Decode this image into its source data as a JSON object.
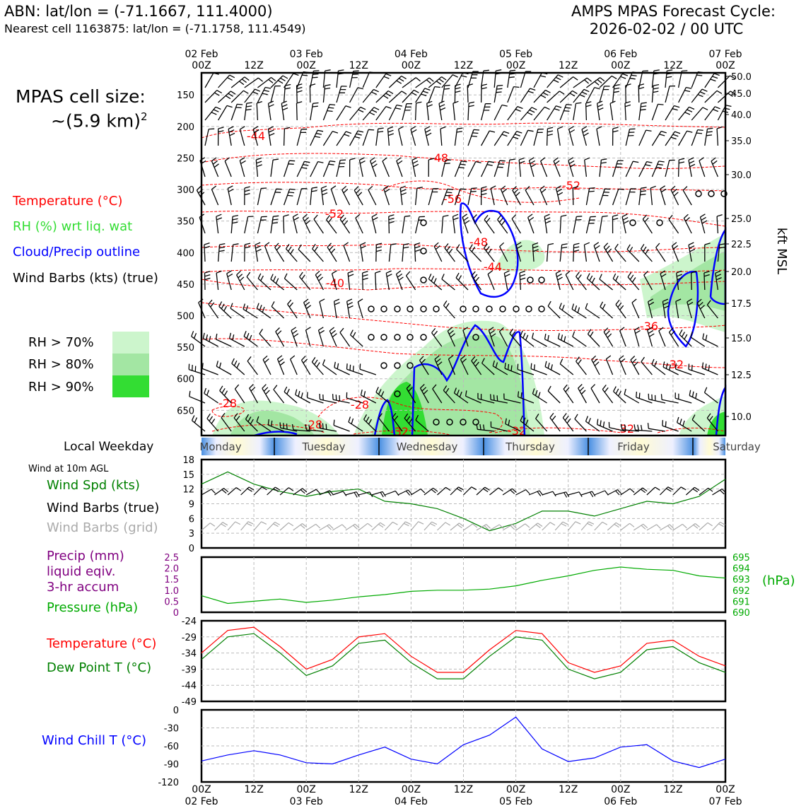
{
  "header": {
    "station": "ABN: lat/lon = (-71.1667, 111.4000)",
    "nearest": "Nearest cell 1163875: lat/lon = (-71.1758, 111.4549)",
    "cycle_title": "AMPS MPAS Forecast Cycle:",
    "cycle_time": "2026-02-02 / 00 UTC"
  },
  "left_panel": {
    "cell_size_line1": "MPAS cell size:",
    "cell_size_line2": "~(5.9 km)",
    "cell_size_sup": "2",
    "legend_temp": "Temperature (°C)",
    "legend_rh": "RH (%) wrt liq. wat",
    "legend_cloud": "Cloud/Precip outline",
    "legend_wind": "Wind Barbs (kts) (true)",
    "rh_levels": [
      {
        "label": "RH > 70%",
        "color": "#ccf5cc"
      },
      {
        "label": "RH > 80%",
        "color": "#a3e6a3"
      },
      {
        "label": "RH > 90%",
        "color": "#33dd33"
      }
    ],
    "local_weekday": "Local Weekday",
    "wind_10m": "Wind at 10m AGL",
    "wind_spd": "Wind Spd (kts)",
    "wind_barbs_true": "Wind Barbs (true)",
    "wind_barbs_grid": "Wind Barbs (grid)",
    "precip_line1": "Precip (mm)",
    "precip_line2": "liquid eqiv.",
    "precip_line3": "3-hr accum",
    "pressure_label": "Pressure (hPa)",
    "temp_label": "Temperature (°C)",
    "dew_label": "Dew Point T (°C)",
    "wind_chill_label": "Wind Chill T (°C)"
  },
  "colors": {
    "temp": "#ff0000",
    "rh": "#33dd33",
    "cloud": "#0000ff",
    "wind": "#000000",
    "wind_spd": "#008000",
    "wind_grid": "#aaaaaa",
    "precip": "#800080",
    "pressure": "#00aa00",
    "dew": "#008000",
    "chill": "#0000ff"
  },
  "time_axis": {
    "top_labels": [
      {
        "l1": "02 Feb",
        "l2": "00Z"
      },
      {
        "l1": "",
        "l2": "12Z"
      },
      {
        "l1": "03 Feb",
        "l2": "00Z"
      },
      {
        "l1": "",
        "l2": "12Z"
      },
      {
        "l1": "04 Feb",
        "l2": "00Z"
      },
      {
        "l1": "",
        "l2": "12Z"
      },
      {
        "l1": "05 Feb",
        "l2": "00Z"
      },
      {
        "l1": "",
        "l2": "12Z"
      },
      {
        "l1": "06 Feb",
        "l2": "00Z"
      },
      {
        "l1": "",
        "l2": "12Z"
      },
      {
        "l1": "07 Feb",
        "l2": "00Z"
      }
    ],
    "bottom_labels": [
      {
        "l1": "00Z",
        "l2": "02 Feb"
      },
      {
        "l1": "12Z",
        "l2": ""
      },
      {
        "l1": "00Z",
        "l2": "03 Feb"
      },
      {
        "l1": "12Z",
        "l2": ""
      },
      {
        "l1": "00Z",
        "l2": "04 Feb"
      },
      {
        "l1": "12Z",
        "l2": ""
      },
      {
        "l1": "00Z",
        "l2": "05 Feb"
      },
      {
        "l1": "12Z",
        "l2": ""
      },
      {
        "l1": "00Z",
        "l2": "06 Feb"
      },
      {
        "l1": "12Z",
        "l2": ""
      },
      {
        "l1": "00Z",
        "l2": "07 Feb"
      }
    ],
    "weekdays": [
      "Monday",
      "Tuesday",
      "Wednesday",
      "Thursday",
      "Friday",
      "Saturday"
    ],
    "weekday_centers": [
      0.05,
      0.24,
      0.44,
      0.63,
      0.83,
      0.98
    ]
  },
  "chart_data": [
    {
      "type": "contour",
      "name": "cross-section",
      "ylabel_right": "kft MSL",
      "pressure_ticks": [
        150,
        200,
        250,
        300,
        350,
        400,
        450,
        500,
        550,
        600,
        650
      ],
      "kft_ticks": [
        50.0,
        45.0,
        40.0,
        35.0,
        30.0,
        25.0,
        22.5,
        20.0,
        17.5,
        15.0,
        12.5,
        10.0
      ],
      "temp_labels": [
        "-44",
        "-48",
        "-52",
        "-56",
        "-52",
        "-48",
        "-44",
        "-40",
        "-36",
        "-32",
        "-28",
        "-28",
        "-28",
        "-32",
        "-32",
        "-32"
      ]
    },
    {
      "type": "line",
      "name": "wind-speed",
      "ylim": [
        0,
        18
      ],
      "yticks": [
        "18",
        "15",
        "12",
        "9",
        "6",
        "3",
        "0"
      ],
      "x_hours": [
        0,
        6,
        12,
        18,
        24,
        30,
        36,
        42,
        48,
        54,
        60,
        66,
        72,
        78,
        84,
        90,
        96,
        102,
        108,
        114,
        120
      ],
      "values": [
        13,
        15.5,
        13,
        11.5,
        10.5,
        11.5,
        12,
        9.5,
        9,
        8,
        6,
        3.5,
        5,
        7.5,
        7.5,
        6.5,
        8,
        9.5,
        9,
        10.5,
        14
      ]
    },
    {
      "type": "line",
      "name": "precip-pressure",
      "precip_ticks": [
        "2.5",
        "2.0",
        "1.5",
        "1.0",
        "0.5",
        "0"
      ],
      "pressure_ticks": [
        "695",
        "694",
        "693",
        "692",
        "691",
        "690"
      ],
      "ylabel_right": "(hPa)",
      "ylim": [
        690,
        695
      ],
      "values": [
        691.5,
        690.8,
        691.0,
        691.2,
        690.9,
        691.1,
        691.4,
        691.6,
        691.9,
        692.0,
        692.0,
        692.1,
        692.4,
        692.9,
        693.3,
        693.8,
        694.1,
        693.9,
        693.8,
        693.3,
        693.1
      ]
    },
    {
      "type": "line",
      "name": "temperature",
      "ylim": [
        -49,
        -24
      ],
      "yticks": [
        "-24",
        "-29",
        "-34",
        "-39",
        "-44",
        "-49"
      ],
      "series": [
        {
          "name": "Temperature",
          "values": [
            -34,
            -27,
            -26,
            -32,
            -39,
            -36,
            -29,
            -28,
            -35,
            -40,
            -40,
            -33,
            -27,
            -28,
            -37,
            -40,
            -38,
            -31,
            -30,
            -35,
            -38
          ]
        },
        {
          "name": "Dew Point",
          "values": [
            -36,
            -29,
            -28,
            -34,
            -41,
            -38,
            -31,
            -30,
            -37,
            -42,
            -42,
            -35,
            -29,
            -30,
            -39,
            -42,
            -40,
            -33,
            -32,
            -37,
            -40
          ]
        }
      ]
    },
    {
      "type": "line",
      "name": "wind-chill",
      "ylim": [
        -120,
        0
      ],
      "yticks": [
        "0",
        "-30",
        "-60",
        "-90",
        "-120"
      ],
      "values": [
        -85,
        -75,
        -68,
        -75,
        -88,
        -90,
        -75,
        -62,
        -82,
        -90,
        -58,
        -42,
        -12,
        -65,
        -86,
        -80,
        -62,
        -58,
        -85,
        -96,
        -82
      ]
    }
  ]
}
